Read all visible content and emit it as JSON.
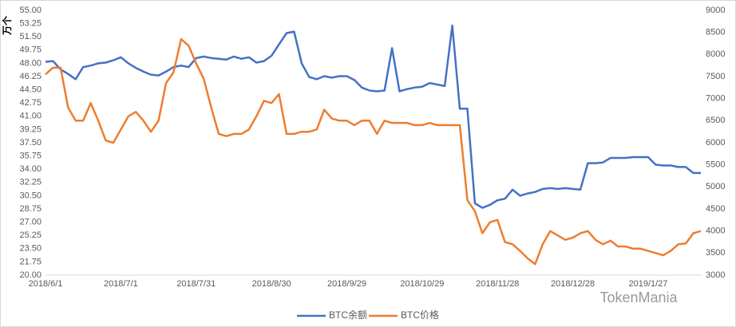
{
  "chart_data": {
    "type": "line",
    "y_label": "万个",
    "watermark": "TokenMania",
    "categories": [
      "2018/6/1",
      null,
      null,
      null,
      null,
      null,
      null,
      null,
      null,
      null,
      "2018/7/1",
      null,
      null,
      null,
      null,
      null,
      null,
      null,
      null,
      null,
      "2018/7/31",
      null,
      null,
      null,
      null,
      null,
      null,
      null,
      null,
      null,
      "2018/8/30",
      null,
      null,
      null,
      null,
      null,
      null,
      null,
      null,
      null,
      "2018/9/29",
      null,
      null,
      null,
      null,
      null,
      null,
      null,
      null,
      null,
      "2018/10/29",
      null,
      null,
      null,
      null,
      null,
      null,
      null,
      null,
      null,
      "2018/11/28",
      null,
      null,
      null,
      null,
      null,
      null,
      null,
      null,
      null,
      "2018/12/28",
      null,
      null,
      null,
      null,
      null,
      null,
      null,
      null,
      null,
      "2019/1/27",
      null,
      null,
      null,
      null,
      null,
      null,
      null
    ],
    "series": [
      {
        "name": "BTC余额",
        "color": "#4472c4",
        "values": [
          48.2,
          48.3,
          47.2,
          46.6,
          45.9,
          47.5,
          47.7,
          48,
          48.1,
          48.4,
          48.8,
          48,
          47.4,
          46.9,
          46.5,
          46.4,
          46.9,
          47.5,
          47.7,
          47.5,
          48.7,
          48.9,
          48.7,
          48.6,
          48.5,
          48.9,
          48.6,
          48.8,
          48.1,
          48.3,
          49,
          50.5,
          52,
          52.2,
          48,
          46.2,
          45.9,
          46.3,
          46.1,
          46.3,
          46.3,
          45.8,
          44.8,
          44.4,
          44.3,
          44.4,
          50,
          44.3,
          44.6,
          44.8,
          44.9,
          45.4,
          45.2,
          45,
          53,
          42,
          42,
          29.5,
          28.9,
          29.3,
          29.9,
          30.1,
          31.3,
          30.5,
          30.8,
          31,
          31.4,
          31.5,
          31.4,
          31.5,
          31.4,
          31.3,
          34.8,
          34.8,
          34.9,
          35.5,
          35.5,
          35.5,
          35.6,
          35.6,
          35.6,
          34.6,
          34.5,
          34.5,
          34.3,
          34.3,
          33.5,
          33.5
        ]
      },
      {
        "name": "BTC价格",
        "color": "#ed7d31",
        "axis": "y2",
        "values": [
          7550,
          7700,
          7700,
          6800,
          6500,
          6500,
          6900,
          6500,
          6050,
          6000,
          6300,
          6600,
          6700,
          6500,
          6250,
          6500,
          7350,
          7600,
          8350,
          8200,
          7800,
          7450,
          6800,
          6200,
          6150,
          6200,
          6200,
          6300,
          6600,
          6950,
          6900,
          7100,
          6200,
          6200,
          6250,
          6250,
          6300,
          6750,
          6550,
          6500,
          6500,
          6400,
          6500,
          6500,
          6200,
          6500,
          6450,
          6450,
          6450,
          6400,
          6400,
          6450,
          6400,
          6400,
          6400,
          6400,
          4700,
          4450,
          3950,
          4200,
          4250,
          3750,
          3700,
          3550,
          3380,
          3250,
          3700,
          4000,
          3900,
          3800,
          3850,
          3950,
          4000,
          3800,
          3700,
          3780,
          3650,
          3650,
          3600,
          3600,
          3550,
          3500,
          3450,
          3550,
          3700,
          3720,
          3950,
          4000
        ]
      }
    ],
    "ylim": [
      20,
      55
    ],
    "yticks": [
      {
        "value": 20,
        "label": "20.00"
      },
      {
        "value": 21.75,
        "label": "21.75"
      },
      {
        "value": 23.5,
        "label": "23.50"
      },
      {
        "value": 25.25,
        "label": "25.25"
      },
      {
        "value": 27,
        "label": "27.00"
      },
      {
        "value": 28.75,
        "label": "28.75"
      },
      {
        "value": 30.5,
        "label": "30.50"
      },
      {
        "value": 32.25,
        "label": "32.25"
      },
      {
        "value": 34,
        "label": "34.00"
      },
      {
        "value": 35.75,
        "label": "35.75"
      },
      {
        "value": 37.5,
        "label": "37.50"
      },
      {
        "value": 39.25,
        "label": "39.25"
      },
      {
        "value": 41,
        "label": "41.00"
      },
      {
        "value": 42.75,
        "label": "42.75"
      },
      {
        "value": 44.5,
        "label": "44.50"
      },
      {
        "value": 46.25,
        "label": "46.25"
      },
      {
        "value": 48,
        "label": "48.00"
      },
      {
        "value": 49.75,
        "label": "49.75"
      },
      {
        "value": 51.5,
        "label": "51.50"
      },
      {
        "value": 53.25,
        "label": "53.25"
      },
      {
        "value": 55,
        "label": "55.00"
      }
    ],
    "y2lim": [
      3000,
      9000
    ],
    "y2ticks": [
      3000,
      3500,
      4000,
      4500,
      5000,
      5500,
      6000,
      6500,
      7000,
      7500,
      8000,
      8500,
      9000
    ],
    "legend": "bottom"
  }
}
